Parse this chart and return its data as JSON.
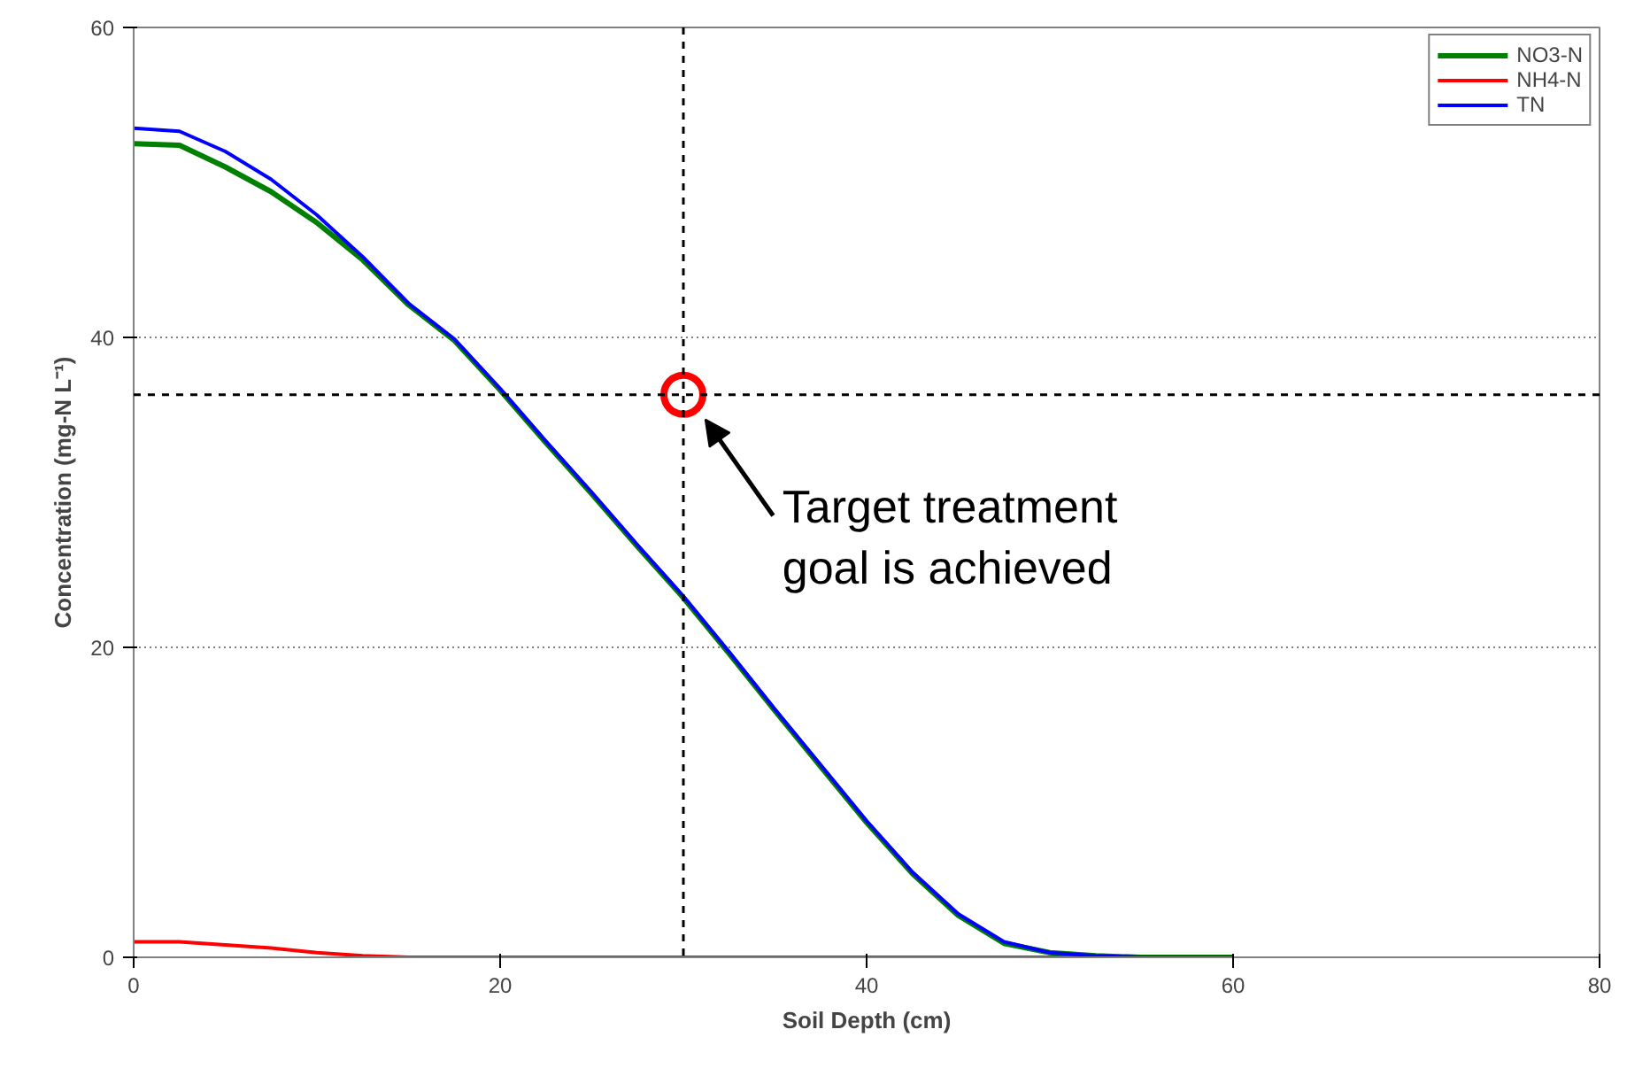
{
  "chart_data": {
    "type": "line",
    "xlabel": "Soil Depth (cm)",
    "ylabel": "Concentration (mg-N L⁻¹)",
    "xlim": [
      0,
      80
    ],
    "ylim": [
      0,
      60
    ],
    "xticks": [
      0,
      20,
      40,
      60,
      80
    ],
    "yticks": [
      0,
      20,
      40,
      60
    ],
    "grid": "y",
    "legend": "top right",
    "marker": "none",
    "line_style": "solid",
    "series": [
      {
        "name": "NO3-N",
        "color": "#008000",
        "x": [
          0,
          2.5,
          5,
          7.5,
          10,
          12.5,
          15,
          17.5,
          20,
          22.5,
          25,
          27.5,
          30,
          32.5,
          35,
          37.5,
          40,
          42.5,
          45,
          47.5,
          50,
          52.5,
          55,
          60
        ],
        "values": [
          52.5,
          52.4,
          51.0,
          49.4,
          47.4,
          45.0,
          42.1,
          39.8,
          36.6,
          33.2,
          29.9,
          26.5,
          23.2,
          19.6,
          15.9,
          12.3,
          8.7,
          5.4,
          2.7,
          0.9,
          0.3,
          0.1,
          0,
          0
        ]
      },
      {
        "name": "NH4-N",
        "color": "#ff0000",
        "x": [
          0,
          2.5,
          5,
          7.5,
          10,
          12.5,
          15,
          20,
          30,
          40,
          50,
          60
        ],
        "values": [
          1.0,
          1.0,
          0.8,
          0.6,
          0.3,
          0.1,
          0,
          0,
          0,
          0,
          0,
          0
        ]
      },
      {
        "name": "TN",
        "color": "#0000ff",
        "x": [
          0,
          2.5,
          5,
          7.5,
          10,
          12.5,
          15,
          17.5,
          20,
          22.5,
          25,
          27.5,
          30,
          32.5,
          35,
          37.5,
          40,
          42.5,
          45,
          47.5,
          50,
          52.5,
          55,
          60
        ],
        "values": [
          53.5,
          53.3,
          52.0,
          50.2,
          47.9,
          45.2,
          42.2,
          39.9,
          36.7,
          33.3,
          30.0,
          26.6,
          23.3,
          19.7,
          16.0,
          12.4,
          8.8,
          5.5,
          2.8,
          1.0,
          0.3,
          0.1,
          0,
          0
        ]
      },
      {
        "type": "scatter",
        "marker": "circle",
        "color": "#ff0000",
        "x": [
          30
        ],
        "values": [
          36.3
        ]
      }
    ],
    "ref_lines": [
      {
        "axis": "x",
        "value": 30,
        "color": "#000000",
        "line_style": "dashed"
      },
      {
        "axis": "y",
        "value": 36.3,
        "color": "#000000",
        "line_style": "dashed"
      }
    ],
    "annotations": [
      {
        "text": "Target treatment\ngoal is achieved",
        "x": 30,
        "y": 36.3
      }
    ]
  }
}
